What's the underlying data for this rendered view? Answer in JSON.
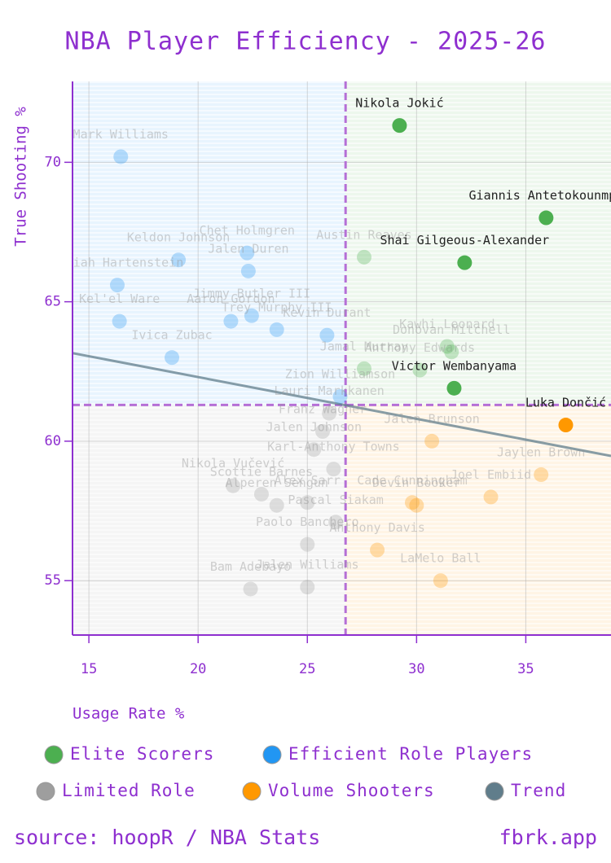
{
  "chart_data": {
    "type": "scatter",
    "title": "NBA Player Efficiency - 2025-26",
    "x_label": "Usage Rate %",
    "y_label": "True Shooting %",
    "xlim": [
      14.25,
      38.9
    ],
    "ylim": [
      53.05,
      72.9
    ],
    "xticks": [
      15,
      20,
      25,
      30,
      35
    ],
    "yticks": [
      55,
      60,
      65,
      70
    ],
    "grid": true,
    "x_threshold": 26.75,
    "y_threshold": 61.3,
    "series": [
      {
        "name": "Elite Scorers",
        "color": "#4caf50",
        "labels": [
          "Nikola Jokić",
          "Giannis Antetokounmpo",
          "Shai Gilgeous-Alexander",
          "Victor Wembanyama",
          "Austin Reaves",
          "Kawhi Leonard",
          "Anthony Edwards",
          "Donovan Mitchell",
          "Jamal Murray"
        ],
        "x": [
          29.22,
          35.93,
          32.2,
          31.72,
          27.6,
          31.4,
          30.15,
          31.6,
          27.6
        ],
        "values": [
          71.32,
          68.01,
          66.4,
          61.9,
          66.6,
          63.4,
          62.55,
          63.2,
          62.6
        ],
        "highlight": [
          true,
          true,
          true,
          true,
          false,
          false,
          false,
          false,
          false
        ]
      },
      {
        "name": "Efficient Role Players",
        "color": "#2196f3",
        "labels": [
          "Mark Williams",
          "Keldon Johnson",
          "Isaiah Hartenstein",
          "Chet Holmgren",
          "Jalen Duren",
          "Jimmy Butler III",
          "Aaron Gordon",
          "Trey Murphy III",
          "Kel'el Ware",
          "Ivica Zubac",
          "Kevin Durant",
          "Zion Williamson"
        ],
        "x": [
          16.46,
          19.1,
          16.3,
          22.24,
          22.3,
          22.45,
          21.5,
          23.6,
          16.4,
          18.8,
          25.9,
          26.5
        ],
        "values": [
          70.2,
          66.5,
          65.6,
          66.75,
          66.1,
          64.5,
          64.3,
          64.0,
          64.3,
          63.0,
          63.8,
          61.6
        ],
        "highlight": [
          false,
          false,
          false,
          false,
          false,
          false,
          false,
          false,
          false,
          false,
          false,
          false
        ]
      },
      {
        "name": "Limited Role",
        "color": "#9e9e9e",
        "labels": [
          "Lauri Markkanen",
          "Franz Wagner",
          "Jalen Johnson",
          "Nikola Vučević",
          "Scottie Barnes",
          "Alperen Sengun",
          "Alex Sarr",
          "Pascal Siakam",
          "Paolo Banchero",
          "Bam Adebayo",
          "Jalen Williams",
          "Karl-Anthony Towns"
        ],
        "x": [
          26.0,
          25.7,
          25.3,
          21.6,
          22.9,
          23.6,
          25.0,
          26.3,
          25.0,
          22.4,
          25.0,
          26.2
        ],
        "values": [
          61.0,
          60.35,
          59.7,
          58.4,
          58.1,
          57.7,
          57.8,
          57.1,
          56.3,
          54.7,
          54.77,
          59.0
        ],
        "highlight": [
          false,
          false,
          false,
          false,
          false,
          false,
          false,
          false,
          false,
          false,
          false,
          false
        ]
      },
      {
        "name": "Volume Shooters",
        "color": "#ff9800",
        "labels": [
          "Luka Dončić",
          "Jalen Brunson",
          "Jaylen Brown",
          "Joel Embiid",
          "Cade Cunningham",
          "Devin Booker",
          "Anthony Davis",
          "LaMelo Ball"
        ],
        "x": [
          36.83,
          30.7,
          35.7,
          33.4,
          29.8,
          30.0,
          28.2,
          31.1
        ],
        "values": [
          60.58,
          60.0,
          58.8,
          58.0,
          57.8,
          57.7,
          56.1,
          55.0
        ],
        "highlight": [
          true,
          false,
          false,
          false,
          false,
          false,
          false,
          false
        ]
      },
      {
        "name": "Trend",
        "type": "line",
        "color": "#607d8b",
        "x": [
          14.25,
          38.9
        ],
        "values": [
          63.16,
          59.47
        ]
      }
    ]
  },
  "footer": {
    "source": "source: hoopR / NBA Stats",
    "site": "fbrk.app"
  }
}
